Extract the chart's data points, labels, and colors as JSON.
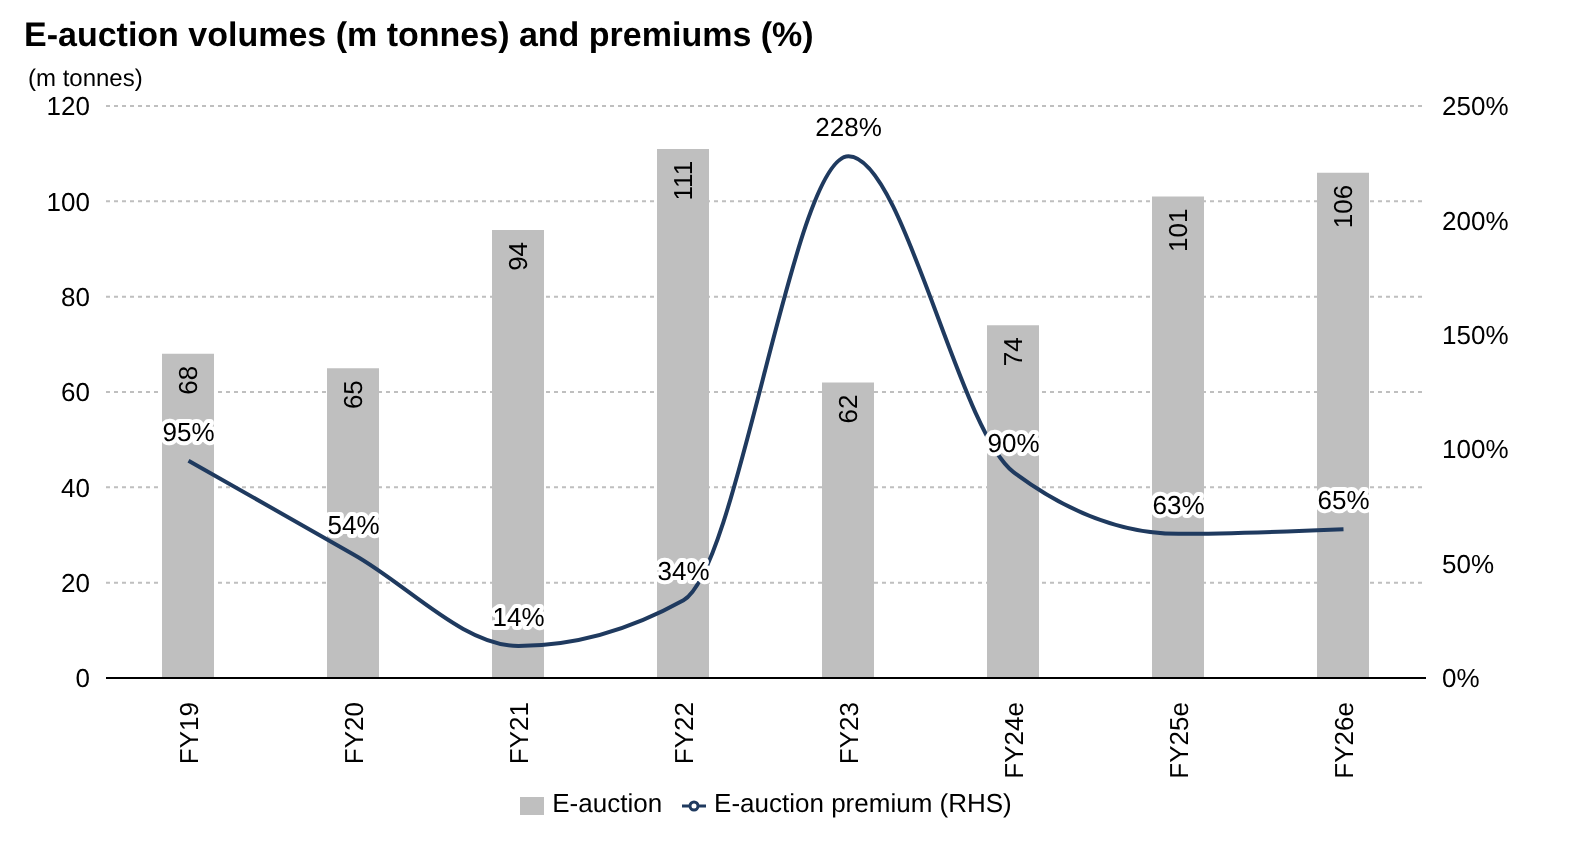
{
  "chart_data": {
    "type": "bar",
    "title": "E-auction volumes (m tonnes) and premiums (%)",
    "ylabel": "(m tonnes)",
    "categories": [
      "FY19",
      "FY20",
      "FY21",
      "FY22",
      "FY23",
      "FY24e",
      "FY25e",
      "FY26e"
    ],
    "series": [
      {
        "name": "E-auction",
        "color": "#bfbfbf",
        "values": [
          68,
          65,
          94,
          111,
          62,
          74,
          101,
          106
        ],
        "value_labels": [
          "68",
          "65",
          "94",
          "111",
          "62",
          "74",
          "101",
          "106"
        ]
      },
      {
        "name": "E-auction premium (RHS)",
        "type": "line",
        "axis": "y2",
        "color": "#1f3a5f",
        "values": [
          95,
          54,
          14,
          34,
          228,
          90,
          63,
          65
        ],
        "value_labels": [
          "95%",
          "54%",
          "14%",
          "34%",
          "228%",
          "90%",
          "63%",
          "65%"
        ]
      }
    ],
    "ylim": [
      0,
      120
    ],
    "yticks": [
      0,
      20,
      40,
      60,
      80,
      100,
      120
    ],
    "y2lim": [
      0,
      250
    ],
    "y2ticks": [
      {
        "value": 0,
        "label": "0%"
      },
      {
        "value": 50,
        "label": "50%"
      },
      {
        "value": 100,
        "label": "100%"
      },
      {
        "value": 150,
        "label": "150%"
      },
      {
        "value": 200,
        "label": "200%"
      },
      {
        "value": 250,
        "label": "250%"
      }
    ],
    "grid": "y",
    "legend": "bottom"
  }
}
